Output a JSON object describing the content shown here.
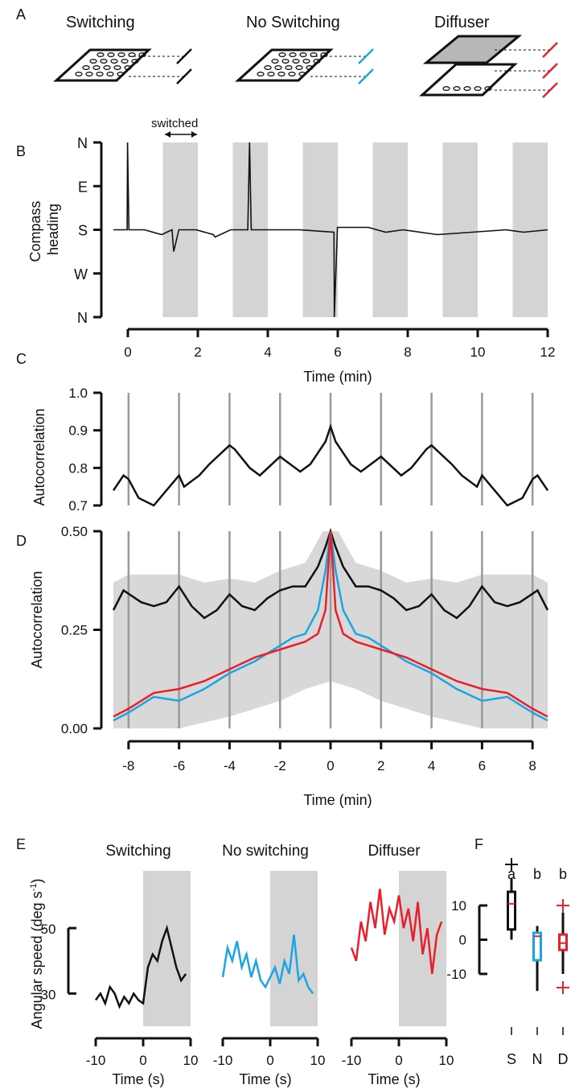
{
  "panel_letters": {
    "a": "A",
    "b": "B",
    "c": "C",
    "d": "D",
    "e": "E",
    "f": "F"
  },
  "panel_a": {
    "titles": [
      "Switching",
      "No Switching",
      "Diffuser"
    ],
    "colors": [
      "#111111",
      "#1aa6e0",
      "#e8202a"
    ]
  },
  "chart_data": [
    {
      "panel": "B",
      "type": "line",
      "annotation": "switched",
      "ylabel": "Compass heading",
      "xlabel": "Time (min)",
      "y_tick_labels": [
        "N",
        "E",
        "S",
        "W",
        "N"
      ],
      "y_tick_values": [
        0,
        90,
        180,
        270,
        360
      ],
      "ylim": [
        0,
        360
      ],
      "xlim": [
        -0.4,
        12.2
      ],
      "x_ticks": [
        0,
        2,
        4,
        6,
        8,
        10,
        12
      ],
      "shaded_intervals": [
        [
          1,
          2
        ],
        [
          3,
          4
        ],
        [
          5,
          6
        ],
        [
          7,
          8
        ],
        [
          9,
          10
        ],
        [
          11,
          12
        ]
      ],
      "series": [
        {
          "color": "#111111",
          "x": [
            -0.4,
            0,
            0.01,
            0.05,
            0.5,
            1,
            1.3,
            1.35,
            1.5,
            2,
            2.5,
            2.55,
            3,
            3.5,
            3.55,
            3.6,
            4,
            5,
            6,
            6.01,
            6.1,
            7,
            7.5,
            8,
            9,
            10,
            11,
            11.5,
            12.2
          ],
          "y": [
            180,
            180,
            0,
            180,
            180,
            190,
            180,
            225,
            180,
            180,
            190,
            195,
            180,
            180,
            0,
            180,
            180,
            180,
            185,
            360,
            175,
            175,
            185,
            180,
            190,
            185,
            180,
            185,
            180
          ]
        }
      ]
    },
    {
      "panel": "C",
      "type": "line",
      "ylabel": "Autocorrelation",
      "y_ticks": [
        0.7,
        0.8,
        0.9,
        1.0
      ],
      "ylim": [
        0.7,
        1.0
      ],
      "xlim": [
        -8.6,
        8.6
      ],
      "vertical_lines": [
        -8,
        -6,
        -4,
        -2,
        0,
        2,
        4,
        6,
        8
      ],
      "series": [
        {
          "color": "#111111",
          "x": [
            -8.6,
            -8.2,
            -8,
            -7.6,
            -7,
            -6.5,
            -6,
            -5.8,
            -5.2,
            -4.8,
            -4,
            -3.8,
            -3.2,
            -2.8,
            -2,
            -1.8,
            -1.2,
            -0.8,
            -0.5,
            -0.2,
            0,
            0.2,
            0.5,
            0.8,
            1.2,
            1.8,
            2,
            2.8,
            3.2,
            3.8,
            4,
            4.8,
            5.2,
            5.8,
            6,
            6.5,
            7,
            7.6,
            8,
            8.2,
            8.6
          ],
          "y": [
            0.74,
            0.78,
            0.77,
            0.72,
            0.7,
            0.74,
            0.78,
            0.75,
            0.78,
            0.81,
            0.86,
            0.85,
            0.8,
            0.78,
            0.83,
            0.82,
            0.79,
            0.81,
            0.84,
            0.87,
            0.91,
            0.87,
            0.84,
            0.81,
            0.79,
            0.82,
            0.83,
            0.78,
            0.8,
            0.85,
            0.86,
            0.81,
            0.78,
            0.75,
            0.78,
            0.74,
            0.7,
            0.72,
            0.77,
            0.78,
            0.74
          ]
        }
      ]
    },
    {
      "panel": "D",
      "type": "line",
      "ylabel": "Autocorrelation",
      "xlabel": "Time (min)",
      "y_ticks": [
        0.0,
        0.25,
        0.5
      ],
      "y_tick_labels": [
        "0.00",
        "0.25",
        "0.50"
      ],
      "ylim": [
        0,
        0.5
      ],
      "xlim": [
        -8.6,
        8.6
      ],
      "x_ticks": [
        -8,
        -6,
        -4,
        -2,
        0,
        2,
        4,
        6,
        8
      ],
      "vertical_lines": [
        -8,
        -6,
        -4,
        -2,
        0,
        2,
        4,
        6,
        8
      ],
      "band_upper": {
        "x": [
          -8.6,
          -8,
          -6,
          -5,
          -4,
          -3,
          -2,
          -1,
          -0.3,
          0,
          0.3,
          1,
          2,
          3,
          4,
          5,
          6,
          8,
          8.6
        ],
        "y": [
          0.37,
          0.39,
          0.39,
          0.37,
          0.38,
          0.37,
          0.4,
          0.42,
          0.5,
          0.5,
          0.5,
          0.42,
          0.4,
          0.37,
          0.38,
          0.37,
          0.39,
          0.39,
          0.37
        ]
      },
      "band_lower": {
        "x": [
          -8.6,
          -6,
          -4,
          -2,
          -1,
          0,
          1,
          2,
          4,
          6,
          8.6
        ],
        "y": [
          0.0,
          0.0,
          0.03,
          0.07,
          0.1,
          0.12,
          0.1,
          0.07,
          0.03,
          0.0,
          0.0
        ]
      },
      "series": [
        {
          "color": "#111111",
          "x": [
            -8.6,
            -8.2,
            -7.5,
            -7,
            -6.5,
            -6,
            -5.5,
            -5,
            -4.5,
            -4,
            -3.5,
            -3,
            -2.5,
            -2,
            -1.5,
            -1,
            -0.5,
            -0.2,
            0,
            0.2,
            0.5,
            1,
            1.5,
            2,
            2.5,
            3,
            3.5,
            4,
            4.5,
            5,
            5.5,
            6,
            6.5,
            7,
            7.5,
            8.2,
            8.6
          ],
          "y": [
            0.3,
            0.35,
            0.32,
            0.31,
            0.32,
            0.36,
            0.31,
            0.28,
            0.3,
            0.34,
            0.31,
            0.3,
            0.33,
            0.35,
            0.36,
            0.36,
            0.41,
            0.46,
            0.5,
            0.46,
            0.41,
            0.36,
            0.36,
            0.35,
            0.33,
            0.3,
            0.31,
            0.34,
            0.3,
            0.28,
            0.31,
            0.36,
            0.32,
            0.31,
            0.32,
            0.35,
            0.3
          ]
        },
        {
          "color": "#1aa6e0",
          "x": [
            -8.6,
            -8,
            -7,
            -6,
            -5,
            -4,
            -3,
            -2,
            -1.5,
            -1,
            -0.5,
            -0.2,
            0,
            0.2,
            0.5,
            1,
            1.5,
            2,
            3,
            4,
            5,
            6,
            7,
            8,
            8.6
          ],
          "y": [
            0.02,
            0.04,
            0.08,
            0.07,
            0.1,
            0.14,
            0.17,
            0.21,
            0.23,
            0.24,
            0.3,
            0.4,
            0.5,
            0.4,
            0.3,
            0.24,
            0.23,
            0.21,
            0.17,
            0.14,
            0.1,
            0.07,
            0.08,
            0.04,
            0.02
          ]
        },
        {
          "color": "#e8202a",
          "x": [
            -8.6,
            -8,
            -7,
            -6,
            -5,
            -4,
            -3,
            -2,
            -1,
            -0.5,
            -0.2,
            0,
            0.2,
            0.5,
            1,
            2,
            3,
            4,
            5,
            6,
            7,
            8,
            8.6
          ],
          "y": [
            0.03,
            0.05,
            0.09,
            0.1,
            0.12,
            0.15,
            0.18,
            0.2,
            0.22,
            0.24,
            0.3,
            0.5,
            0.3,
            0.24,
            0.22,
            0.2,
            0.18,
            0.15,
            0.12,
            0.1,
            0.09,
            0.05,
            0.03
          ]
        }
      ]
    },
    {
      "panel": "E",
      "type": "line",
      "ylabel": "Angular speed (deg s",
      "ylabel_sup": "-1",
      "ylabel_close": ")",
      "xlabel": "Time (s)",
      "y_ticks": [
        30,
        50
      ],
      "ylim": [
        20,
        68
      ],
      "xlim": [
        -11,
        10
      ],
      "x_ticks": [
        -10,
        0,
        10
      ],
      "shaded_interval": [
        0,
        10
      ],
      "subplots": [
        {
          "title": "Switching",
          "color": "#111111",
          "x": [
            -10,
            -9,
            -8,
            -7,
            -6,
            -5,
            -4,
            -3,
            -2,
            -1,
            0,
            1,
            2,
            3,
            4,
            5,
            6,
            7,
            8,
            9
          ],
          "y": [
            28,
            30,
            27,
            32,
            30,
            26,
            29,
            27,
            30,
            28,
            27,
            38,
            42,
            40,
            46,
            50,
            44,
            38,
            34,
            36
          ]
        },
        {
          "title": "No switching",
          "color": "#1aa6e0",
          "x": [
            -10,
            -9,
            -8,
            -7,
            -6,
            -5,
            -4,
            -3,
            -2,
            -1,
            0,
            1,
            2,
            3,
            4,
            5,
            6,
            7,
            8,
            9
          ],
          "y": [
            35,
            44,
            40,
            46,
            38,
            42,
            35,
            40,
            34,
            32,
            35,
            38,
            33,
            40,
            36,
            48,
            34,
            36,
            32,
            30
          ]
        },
        {
          "title": "Diffuser",
          "color": "#e8202a",
          "x": [
            -10,
            -9,
            -8,
            -7,
            -6,
            -5,
            -4,
            -3,
            -2,
            -1,
            0,
            1,
            2,
            3,
            4,
            5,
            6,
            7,
            8,
            9
          ],
          "y": [
            44,
            40,
            52,
            46,
            58,
            50,
            62,
            48,
            56,
            52,
            60,
            50,
            56,
            46,
            58,
            42,
            50,
            36,
            48,
            52
          ]
        }
      ]
    },
    {
      "panel": "F",
      "type": "box",
      "categories": [
        "S",
        "N",
        "D"
      ],
      "significance_letters": [
        "a",
        "b",
        "b"
      ],
      "y_ticks": [
        -10,
        0,
        10
      ],
      "ylim": [
        -20,
        25
      ],
      "boxes": [
        {
          "category": "S",
          "color": "#111111",
          "median": 10.5,
          "q1": 3,
          "q3": 14,
          "whisker_low": 0,
          "whisker_high": 18,
          "outliers": [
            22
          ]
        },
        {
          "category": "N",
          "color": "#1aa6e0",
          "median": 1,
          "q1": -6,
          "q3": 2,
          "whisker_low": -15,
          "whisker_high": 4,
          "outliers": []
        },
        {
          "category": "D",
          "color": "#e8202a",
          "median": -1,
          "q1": -3,
          "q3": 1.5,
          "whisker_low": -10,
          "whisker_high": 8,
          "outliers": [
            10,
            -14
          ]
        }
      ]
    }
  ]
}
